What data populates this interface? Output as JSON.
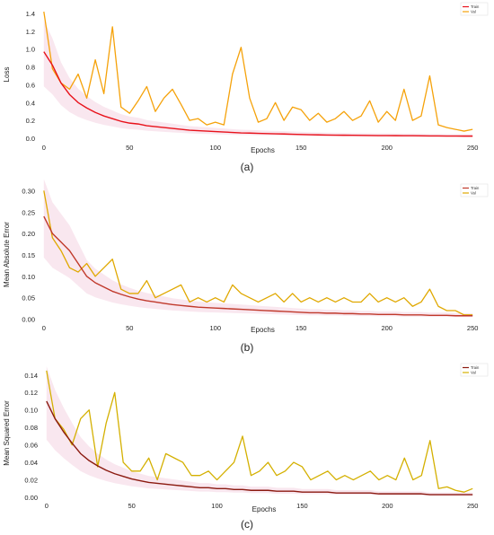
{
  "chart_data": [
    {
      "type": "line",
      "caption": "(a)",
      "xlabel": "Epochs",
      "ylabel": "Loss",
      "xlim": [
        -2,
        252
      ],
      "ylim": [
        -0.02,
        1.45
      ],
      "xticks": [
        0,
        50,
        100,
        150,
        200,
        250
      ],
      "yticks": [
        0.0,
        0.2,
        0.4,
        0.6,
        0.8,
        1.0,
        1.2,
        1.4
      ],
      "ytick_decimals": 1,
      "legend": "top-right",
      "grid": false,
      "colors": {
        "train": "#e8121b",
        "val": "#f5a20a"
      },
      "train_gen": {
        "start": 0.97,
        "floor": 0.03,
        "k": 0.03,
        "mid_amp": 0.005
      },
      "val_gen": {
        "start": 1.42,
        "floor": 0.02,
        "k": 0.028,
        "noise": 0.05
      },
      "val_spikes": [
        [
          3,
          0.7
        ],
        [
          5,
          0.65
        ],
        [
          9,
          0.55
        ],
        [
          13,
          0.52
        ],
        [
          17,
          0.5
        ],
        [
          20,
          0.55
        ],
        [
          22,
          0.7
        ],
        [
          25,
          0.88
        ],
        [
          30,
          0.5
        ],
        [
          34,
          0.6
        ],
        [
          37,
          0.58
        ],
        [
          39,
          0.45
        ],
        [
          41,
          1.25
        ],
        [
          45,
          0.35
        ],
        [
          49,
          0.28
        ],
        [
          52,
          0.25
        ],
        [
          57,
          0.42
        ],
        [
          62,
          0.28
        ],
        [
          65,
          0.58
        ],
        [
          68,
          0.3
        ],
        [
          72,
          0.25
        ],
        [
          75,
          0.35
        ],
        [
          78,
          0.45
        ],
        [
          82,
          0.35
        ],
        [
          85,
          0.3
        ],
        [
          88,
          0.55
        ],
        [
          92,
          0.2
        ],
        [
          95,
          0.38
        ],
        [
          98,
          0.28
        ],
        [
          102,
          0.2
        ],
        [
          106,
          0.18
        ],
        [
          110,
          0.22
        ],
        [
          115,
          0.18
        ],
        [
          118,
          0.15
        ],
        [
          120,
          0.72
        ],
        [
          124,
          1.02
        ],
        [
          128,
          0.45
        ],
        [
          132,
          0.18
        ],
        [
          136,
          0.22
        ],
        [
          140,
          0.25
        ],
        [
          144,
          0.4
        ],
        [
          148,
          0.2
        ],
        [
          152,
          0.18
        ],
        [
          156,
          0.35
        ],
        [
          160,
          0.2
        ],
        [
          164,
          0.32
        ],
        [
          168,
          0.22
        ],
        [
          172,
          0.2
        ],
        [
          176,
          0.28
        ],
        [
          180,
          0.18
        ],
        [
          186,
          0.22
        ],
        [
          190,
          0.3
        ],
        [
          194,
          0.2
        ],
        [
          200,
          0.25
        ],
        [
          206,
          0.42
        ],
        [
          212,
          0.18
        ],
        [
          216,
          0.3
        ],
        [
          222,
          0.2
        ],
        [
          226,
          0.55
        ],
        [
          232,
          0.2
        ],
        [
          236,
          0.25
        ],
        [
          240,
          0.7
        ],
        [
          245,
          0.15
        ],
        [
          249,
          0.12
        ]
      ],
      "series": [
        {
          "name": "Train",
          "color": "#e8121b",
          "values": [
            0.97,
            0.82,
            0.62,
            0.49,
            0.4,
            0.34,
            0.29,
            0.25,
            0.22,
            0.19,
            0.17,
            0.16,
            0.14,
            0.13,
            0.12,
            0.11,
            0.1,
            0.09,
            0.085,
            0.08,
            0.075,
            0.07,
            0.065,
            0.06,
            0.058,
            0.055,
            0.052,
            0.05,
            0.048,
            0.045,
            0.042,
            0.04,
            0.038,
            0.036,
            0.035,
            0.034,
            0.033,
            0.032,
            0.031,
            0.03,
            0.03,
            0.029,
            0.028,
            0.028,
            0.027,
            0.026,
            0.026,
            0.025,
            0.025,
            0.024,
            0.024
          ]
        },
        {
          "name": "Val",
          "color": "#f5a20a",
          "values": [
            1.42,
            0.78,
            0.62,
            0.55,
            0.72,
            0.45,
            0.88,
            0.5,
            1.25,
            0.35,
            0.28,
            0.42,
            0.58,
            0.3,
            0.45,
            0.55,
            0.38,
            0.2,
            0.22,
            0.15,
            0.18,
            0.15,
            0.72,
            1.02,
            0.45,
            0.18,
            0.22,
            0.4,
            0.2,
            0.35,
            0.32,
            0.2,
            0.28,
            0.18,
            0.22,
            0.3,
            0.2,
            0.25,
            0.42,
            0.18,
            0.3,
            0.2,
            0.55,
            0.2,
            0.25,
            0.7,
            0.15,
            0.12,
            0.1,
            0.08,
            0.1
          ]
        }
      ]
    },
    {
      "type": "line",
      "caption": "(b)",
      "xlabel": "Epochs",
      "ylabel": "Mean Absolute Error",
      "xlim": [
        -2,
        252
      ],
      "ylim": [
        -0.003,
        0.305
      ],
      "xticks": [
        0,
        50,
        100,
        150,
        200,
        250
      ],
      "yticks": [
        0.0,
        0.05,
        0.1,
        0.15,
        0.2,
        0.25,
        0.3
      ],
      "ytick_decimals": 2,
      "legend": "top-right",
      "grid": false,
      "colors": {
        "train": "#c0392b",
        "val": "#e0a800"
      },
      "val_spikes": [
        [
          3,
          0.2
        ],
        [
          6,
          0.18
        ],
        [
          9,
          0.15
        ],
        [
          12,
          0.12
        ],
        [
          16,
          0.11
        ],
        [
          20,
          0.1
        ],
        [
          23,
          0.12
        ],
        [
          26,
          0.13
        ],
        [
          29,
          0.1
        ],
        [
          31,
          0.08
        ],
        [
          34,
          0.12
        ],
        [
          37,
          0.09
        ],
        [
          41,
          0.14
        ],
        [
          44,
          0.07
        ],
        [
          47,
          0.06
        ],
        [
          52,
          0.06
        ],
        [
          55,
          0.05
        ],
        [
          58,
          0.07
        ],
        [
          60,
          0.05
        ],
        [
          63,
          0.09
        ],
        [
          66,
          0.05
        ],
        [
          70,
          0.06
        ],
        [
          74,
          0.05
        ],
        [
          78,
          0.06
        ],
        [
          81,
          0.07
        ],
        [
          84,
          0.05
        ],
        [
          88,
          0.08
        ],
        [
          92,
          0.04
        ],
        [
          96,
          0.07
        ],
        [
          100,
          0.04
        ],
        [
          104,
          0.05
        ],
        [
          108,
          0.04
        ],
        [
          112,
          0.05
        ],
        [
          115,
          0.04
        ],
        [
          119,
          0.06
        ],
        [
          122,
          0.08
        ],
        [
          125,
          0.06
        ],
        [
          129,
          0.05
        ],
        [
          132,
          0.04
        ],
        [
          136,
          0.05
        ],
        [
          140,
          0.06
        ],
        [
          144,
          0.05
        ],
        [
          148,
          0.04
        ],
        [
          152,
          0.06
        ],
        [
          156,
          0.04
        ],
        [
          160,
          0.05
        ],
        [
          164,
          0.04
        ],
        [
          168,
          0.05
        ],
        [
          172,
          0.04
        ],
        [
          176,
          0.05
        ],
        [
          180,
          0.04
        ],
        [
          186,
          0.05
        ],
        [
          190,
          0.04
        ],
        [
          196,
          0.04
        ],
        [
          202,
          0.05
        ],
        [
          206,
          0.06
        ],
        [
          212,
          0.04
        ],
        [
          216,
          0.05
        ],
        [
          222,
          0.04
        ],
        [
          226,
          0.05
        ],
        [
          232,
          0.03
        ],
        [
          236,
          0.04
        ],
        [
          240,
          0.07
        ],
        [
          245,
          0.03
        ],
        [
          249,
          0.02
        ]
      ],
      "series": [
        {
          "name": "Train",
          "color": "#c0392b",
          "values": [
            0.24,
            0.2,
            0.18,
            0.16,
            0.13,
            0.1,
            0.085,
            0.075,
            0.065,
            0.058,
            0.052,
            0.047,
            0.043,
            0.04,
            0.037,
            0.034,
            0.032,
            0.03,
            0.028,
            0.027,
            0.026,
            0.025,
            0.024,
            0.023,
            0.022,
            0.021,
            0.02,
            0.019,
            0.018,
            0.017,
            0.016,
            0.015,
            0.015,
            0.014,
            0.014,
            0.013,
            0.013,
            0.012,
            0.012,
            0.011,
            0.011,
            0.011,
            0.01,
            0.01,
            0.01,
            0.009,
            0.009,
            0.009,
            0.008,
            0.008,
            0.008
          ]
        },
        {
          "name": "Val",
          "color": "#e0a800",
          "values": [
            0.3,
            0.19,
            0.16,
            0.12,
            0.11,
            0.13,
            0.1,
            0.12,
            0.14,
            0.07,
            0.06,
            0.06,
            0.09,
            0.05,
            0.06,
            0.07,
            0.08,
            0.04,
            0.05,
            0.04,
            0.05,
            0.04,
            0.08,
            0.06,
            0.05,
            0.04,
            0.05,
            0.06,
            0.04,
            0.06,
            0.04,
            0.05,
            0.04,
            0.05,
            0.04,
            0.05,
            0.04,
            0.04,
            0.06,
            0.04,
            0.05,
            0.04,
            0.05,
            0.03,
            0.04,
            0.07,
            0.03,
            0.02,
            0.02,
            0.01,
            0.01
          ]
        }
      ]
    },
    {
      "type": "line",
      "caption": "(c)",
      "xlabel": "Epochs",
      "ylabel": "Mean Squared Error",
      "xlim": [
        -2,
        252
      ],
      "ylim": [
        -0.001,
        0.148
      ],
      "xticks": [
        0,
        50,
        100,
        150,
        200,
        250
      ],
      "yticks": [
        0.0,
        0.02,
        0.04,
        0.06,
        0.08,
        0.1,
        0.12,
        0.14
      ],
      "ytick_decimals": 2,
      "legend": "top-right",
      "grid": false,
      "colors": {
        "train": "#8b1a10",
        "val": "#d4b000"
      },
      "val_spikes": [
        [
          3,
          0.09
        ],
        [
          6,
          0.085
        ],
        [
          9,
          0.078
        ],
        [
          12,
          0.06
        ],
        [
          15,
          0.075
        ],
        [
          18,
          0.04
        ],
        [
          21,
          0.06
        ],
        [
          23,
          0.09
        ],
        [
          25,
          0.1
        ],
        [
          28,
          0.035
        ],
        [
          31,
          0.085
        ],
        [
          34,
          0.045
        ],
        [
          37,
          0.03
        ],
        [
          40,
          0.12
        ],
        [
          43,
          0.04
        ],
        [
          46,
          0.03
        ],
        [
          50,
          0.03
        ],
        [
          53,
          0.025
        ],
        [
          56,
          0.04
        ],
        [
          59,
          0.03
        ],
        [
          62,
          0.045
        ],
        [
          65,
          0.02
        ],
        [
          68,
          0.03
        ],
        [
          72,
          0.025
        ],
        [
          75,
          0.05
        ],
        [
          78,
          0.02
        ],
        [
          81,
          0.045
        ],
        [
          85,
          0.03
        ],
        [
          88,
          0.04
        ],
        [
          92,
          0.025
        ],
        [
          95,
          0.035
        ],
        [
          98,
          0.02
        ],
        [
          102,
          0.025
        ],
        [
          106,
          0.03
        ],
        [
          110,
          0.02
        ],
        [
          114,
          0.025
        ],
        [
          118,
          0.03
        ],
        [
          122,
          0.04
        ],
        [
          125,
          0.02
        ],
        [
          128,
          0.025
        ],
        [
          132,
          0.03
        ],
        [
          136,
          0.04
        ],
        [
          140,
          0.035
        ],
        [
          144,
          0.025
        ],
        [
          148,
          0.03
        ],
        [
          152,
          0.025
        ],
        [
          156,
          0.04
        ],
        [
          160,
          0.02
        ],
        [
          164,
          0.035
        ],
        [
          168,
          0.03
        ],
        [
          172,
          0.02
        ],
        [
          176,
          0.025
        ],
        [
          180,
          0.03
        ],
        [
          186,
          0.02
        ],
        [
          190,
          0.025
        ],
        [
          196,
          0.02
        ],
        [
          202,
          0.025
        ],
        [
          206,
          0.03
        ],
        [
          212,
          0.02
        ],
        [
          216,
          0.025
        ],
        [
          222,
          0.02
        ],
        [
          226,
          0.03
        ],
        [
          232,
          0.02
        ],
        [
          236,
          0.025
        ],
        [
          240,
          0.06
        ],
        [
          245,
          0.01
        ],
        [
          249,
          0.01
        ]
      ],
      "series": [
        {
          "name": "Train",
          "color": "#8b1a10",
          "values": [
            0.11,
            0.09,
            0.075,
            0.062,
            0.05,
            0.042,
            0.036,
            0.031,
            0.027,
            0.024,
            0.021,
            0.019,
            0.017,
            0.016,
            0.015,
            0.014,
            0.013,
            0.012,
            0.011,
            0.011,
            0.01,
            0.01,
            0.009,
            0.009,
            0.008,
            0.008,
            0.008,
            0.007,
            0.007,
            0.007,
            0.006,
            0.006,
            0.006,
            0.006,
            0.005,
            0.005,
            0.005,
            0.005,
            0.005,
            0.004,
            0.004,
            0.004,
            0.004,
            0.004,
            0.004,
            0.003,
            0.003,
            0.003,
            0.003,
            0.003,
            0.003
          ]
        },
        {
          "name": "Val",
          "color": "#d4b000",
          "values": [
            0.145,
            0.09,
            0.078,
            0.06,
            0.09,
            0.1,
            0.035,
            0.085,
            0.12,
            0.04,
            0.03,
            0.03,
            0.045,
            0.02,
            0.05,
            0.045,
            0.04,
            0.025,
            0.025,
            0.03,
            0.02,
            0.03,
            0.04,
            0.07,
            0.025,
            0.03,
            0.04,
            0.025,
            0.03,
            0.04,
            0.035,
            0.02,
            0.025,
            0.03,
            0.02,
            0.025,
            0.02,
            0.025,
            0.03,
            0.02,
            0.025,
            0.02,
            0.045,
            0.02,
            0.025,
            0.065,
            0.01,
            0.012,
            0.008,
            0.006,
            0.01
          ]
        }
      ]
    }
  ]
}
